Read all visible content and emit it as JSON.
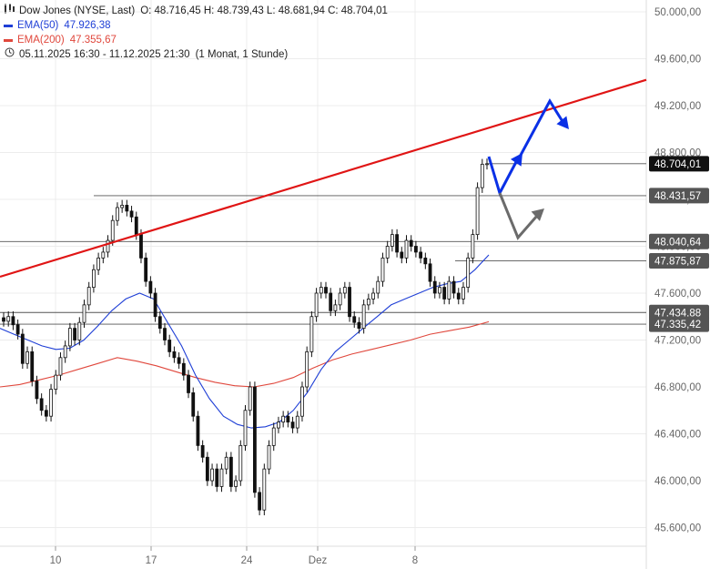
{
  "header": {
    "title": "Dow Jones (NYSE, Last)",
    "ohlc": "O: 48.716,45   H: 48.739,43   L: 48.681,94   C: 48.704,01",
    "ema50_label": "EMA(50)",
    "ema50_value": "47.926,38",
    "ema200_label": "EMA(200)",
    "ema200_value": "47.355,67",
    "period": "05.11.2025 16:30 - 11.12.2025 21:30",
    "interval": "(1 Monat, 1 Stunde)",
    "icons": [
      "candles-icon",
      "clock-icon"
    ]
  },
  "colors": {
    "ema50": "#1f3fd6",
    "ema200": "#e0473c",
    "trendline": "#e01515",
    "forecast_up": "#0a30e6",
    "forecast_alt": "#6b6b6b",
    "last_price_tag": "#111111",
    "level_tag": "#555555",
    "candles": "#111111"
  },
  "chart_data": {
    "type": "candlestick",
    "x_ticks": [
      "10",
      "17",
      "24",
      "Dez",
      "8"
    ],
    "y_ticks": [
      "50.000,00",
      "49.600,00",
      "49.200,00",
      "48.800,00",
      "48.400,00",
      "48.000,00",
      "47.600,00",
      "47.200,00",
      "46.800,00",
      "46.400,00",
      "46.000,00",
      "45.600,00"
    ],
    "y_tick_values": [
      50000,
      49600,
      49200,
      48800,
      48400,
      48000,
      47600,
      47200,
      46800,
      46400,
      46000,
      45600
    ],
    "ylim": [
      45450,
      50100
    ],
    "grid": true,
    "last_price": {
      "label": "48.704,01",
      "value": 48704.01
    },
    "levels": [
      {
        "label": "48.431,57",
        "value": 48431.57
      },
      {
        "label": "48.040,64",
        "value": 48040.64
      },
      {
        "label": "47.875,87",
        "value": 47875.87
      },
      {
        "label": "47.434,88",
        "value": 47434.88
      },
      {
        "label": "47.335,42",
        "value": 47335.42
      }
    ],
    "trendline": {
      "start": 47740,
      "end": 49420
    },
    "series_close": [
      47360,
      47400,
      47330,
      47250,
      47000,
      47100,
      46850,
      46700,
      46600,
      46550,
      46780,
      46900,
      47050,
      47150,
      47300,
      47200,
      47350,
      47500,
      47650,
      47800,
      47900,
      47950,
      48050,
      48220,
      48330,
      48350,
      48300,
      48250,
      48100,
      47900,
      47700,
      47600,
      47400,
      47300,
      47200,
      47100,
      47050,
      47000,
      46900,
      46750,
      46550,
      46300,
      46200,
      46000,
      46100,
      45950,
      46100,
      46200,
      45950,
      46000,
      46300,
      46600,
      46800,
      45900,
      45750,
      46100,
      46300,
      46450,
      46500,
      46550,
      46500,
      46450,
      46550,
      46800,
      47100,
      47400,
      47600,
      47650,
      47600,
      47450,
      47500,
      47600,
      47650,
      47400,
      47350,
      47300,
      47500,
      47550,
      47600,
      47700,
      47900,
      48000,
      48100,
      47950,
      47900,
      48050,
      48000,
      47950,
      47900,
      47850,
      47700,
      47600,
      47650,
      47550,
      47700,
      47600,
      47550,
      47650,
      47900,
      48100,
      48500,
      48700,
      48704
    ],
    "series_ema50": [
      47300,
      47250,
      47200,
      47150,
      47120,
      47130,
      47200,
      47320,
      47450,
      47550,
      47600,
      47550,
      47350,
      47150,
      46900,
      46700,
      46550,
      46480,
      46450,
      46460,
      46500,
      46600,
      46750,
      46950,
      47100,
      47200,
      47300,
      47400,
      47500,
      47550,
      47600,
      47650,
      47680,
      47700,
      47800,
      47926
    ],
    "series_ema200": [
      46800,
      46820,
      46860,
      46900,
      46950,
      47000,
      47050,
      47020,
      46980,
      46930,
      46880,
      46840,
      46810,
      46800,
      46830,
      46880,
      46960,
      47030,
      47080,
      47120,
      47160,
      47200,
      47250,
      47280,
      47310,
      47356
    ]
  }
}
